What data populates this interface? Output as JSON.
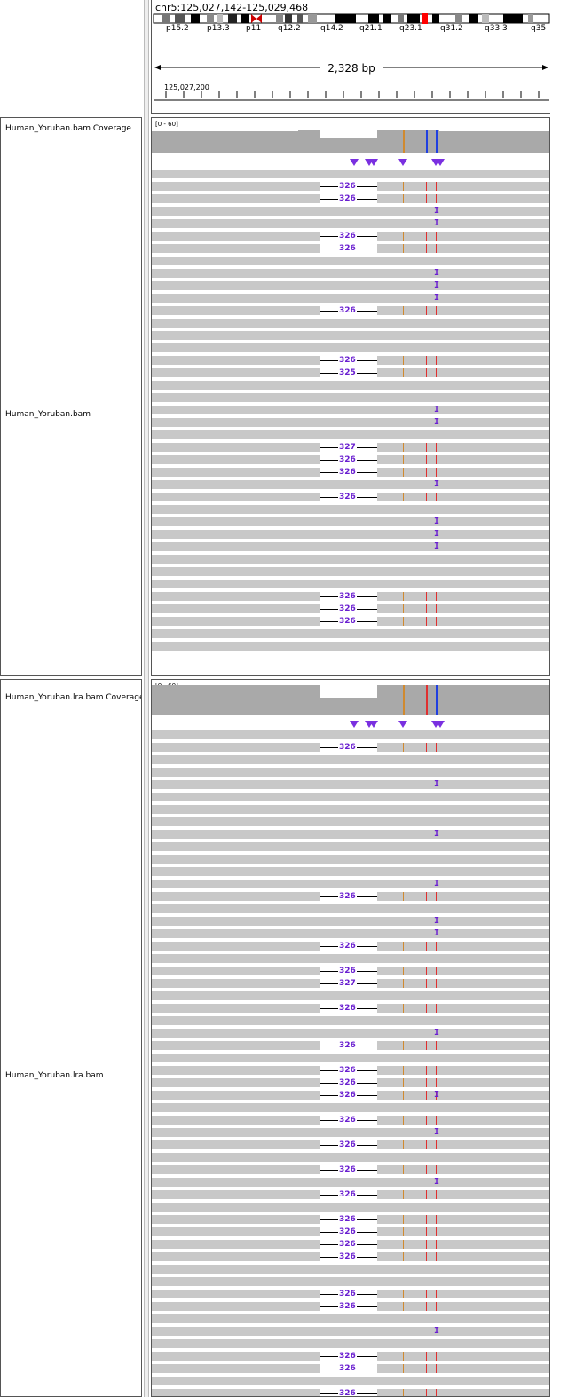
{
  "locus": "chr5:125,027,142-125,029,468",
  "range_label": "2,328 bp",
  "cytobands": [
    "p15.2",
    "p13.3",
    "p11",
    "q12.2",
    "q14.2",
    "q21.1",
    "q23.1",
    "q31.2",
    "q33.3",
    "q35"
  ],
  "ruler_start": "125,027,200",
  "tracks": {
    "cov1_label": "Human_Yoruban.bam Coverage",
    "cov1_range": "[0 - 60]",
    "aln1_label": "Human_Yoruban.bam",
    "cov2_label": "Human_Yoruban.lra.bam Coverage",
    "cov2_range": "[0 - 60]",
    "aln2_label": "Human_Yoruban.lra.bam"
  },
  "colors": {
    "read": "#c8c8c8",
    "coverage": "#a9a9a9",
    "insertion": "#6a1fd0",
    "snp_orange": "#d08a30",
    "snp_red": "#e03030",
    "snp_blue": "#2040e0"
  },
  "deletions1": [
    {
      "row": 1,
      "label": "326"
    },
    {
      "row": 2,
      "label": "326"
    },
    {
      "row": 5,
      "label": "326"
    },
    {
      "row": 6,
      "label": "326"
    },
    {
      "row": 11,
      "label": "326"
    },
    {
      "row": 15,
      "label": "326"
    },
    {
      "row": 16,
      "label": "325"
    },
    {
      "row": 22,
      "label": "327"
    },
    {
      "row": 23,
      "label": "326"
    },
    {
      "row": 24,
      "label": "326"
    },
    {
      "row": 26,
      "label": "326"
    },
    {
      "row": 34,
      "label": "326"
    },
    {
      "row": 35,
      "label": "326"
    },
    {
      "row": 36,
      "label": "326"
    }
  ],
  "deletions2": [
    {
      "row": 1,
      "label": "326"
    },
    {
      "row": 13,
      "label": "326"
    },
    {
      "row": 17,
      "label": "326"
    },
    {
      "row": 19,
      "label": "326"
    },
    {
      "row": 20,
      "label": "327"
    },
    {
      "row": 22,
      "label": "326"
    },
    {
      "row": 25,
      "label": "326"
    },
    {
      "row": 27,
      "label": "326"
    },
    {
      "row": 28,
      "label": "326"
    },
    {
      "row": 29,
      "label": "326"
    },
    {
      "row": 31,
      "label": "326"
    },
    {
      "row": 33,
      "label": "326"
    },
    {
      "row": 35,
      "label": "326"
    },
    {
      "row": 37,
      "label": "326"
    },
    {
      "row": 39,
      "label": "326"
    },
    {
      "row": 40,
      "label": "326"
    },
    {
      "row": 41,
      "label": "326"
    },
    {
      "row": 42,
      "label": "326"
    },
    {
      "row": 45,
      "label": "326"
    },
    {
      "row": 46,
      "label": "326"
    },
    {
      "row": 50,
      "label": "326"
    },
    {
      "row": 51,
      "label": "326"
    },
    {
      "row": 53,
      "label": "326"
    }
  ]
}
